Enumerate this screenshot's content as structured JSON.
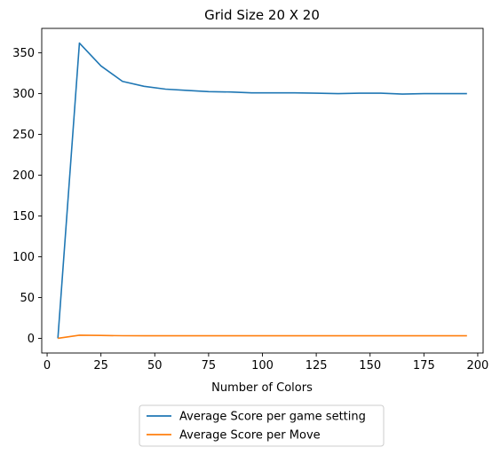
{
  "chart_data": {
    "type": "line",
    "title": "Grid Size 20 X 20",
    "xlabel": "Number of Colors",
    "ylabel": "",
    "xlim": [
      -2.5,
      202.5
    ],
    "ylim": [
      -18,
      380
    ],
    "xticks": [
      0,
      25,
      50,
      75,
      100,
      125,
      150,
      175,
      200
    ],
    "yticks": [
      0,
      50,
      100,
      150,
      200,
      250,
      300,
      350
    ],
    "grid": false,
    "legend_placement": "below",
    "x": [
      5,
      15,
      25,
      35,
      45,
      55,
      65,
      75,
      85,
      95,
      105,
      115,
      125,
      135,
      145,
      155,
      165,
      175,
      185,
      195
    ],
    "series": [
      {
        "name": "Average Score per game setting",
        "color": "#1f77b4",
        "values": [
          0,
          362,
          334,
          315,
          309,
          305.5,
          304,
          302.5,
          302,
          301,
          301,
          301,
          300.5,
          300,
          300.5,
          300.5,
          299.5,
          300,
          300,
          300
        ]
      },
      {
        "name": "Average Score per Move",
        "color": "#ff7f0e",
        "values": [
          0,
          3.8,
          3.5,
          3.2,
          3.1,
          3.1,
          3.1,
          3.1,
          3.1,
          3.1,
          3.1,
          3.1,
          3.1,
          3.1,
          3.1,
          3.1,
          3.1,
          3.1,
          3.1,
          3.1
        ]
      }
    ]
  }
}
